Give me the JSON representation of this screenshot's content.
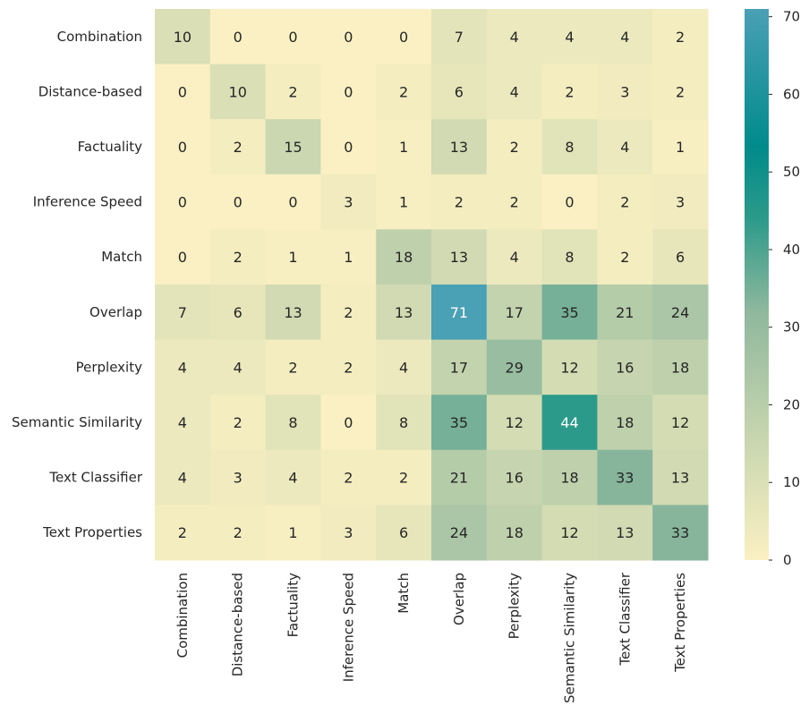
{
  "chart_data": {
    "type": "heatmap",
    "title": "",
    "xlabel": "",
    "ylabel": "",
    "rows": [
      "Combination",
      "Distance-based",
      "Factuality",
      "Inference Speed",
      "Match",
      "Overlap",
      "Perplexity",
      "Semantic Similarity",
      "Text Classifier",
      "Text Properties"
    ],
    "columns": [
      "Combination",
      "Distance-based",
      "Factuality",
      "Inference Speed",
      "Match",
      "Overlap",
      "Perplexity",
      "Semantic Similarity",
      "Text Classifier",
      "Text Properties"
    ],
    "values": [
      [
        10,
        0,
        0,
        0,
        0,
        7,
        4,
        4,
        4,
        2
      ],
      [
        0,
        10,
        2,
        0,
        2,
        6,
        4,
        2,
        3,
        2
      ],
      [
        0,
        2,
        15,
        0,
        1,
        13,
        2,
        8,
        4,
        1
      ],
      [
        0,
        0,
        0,
        3,
        1,
        2,
        2,
        0,
        2,
        3
      ],
      [
        0,
        2,
        1,
        1,
        18,
        13,
        4,
        8,
        2,
        6
      ],
      [
        7,
        6,
        13,
        2,
        13,
        71,
        17,
        35,
        21,
        24
      ],
      [
        4,
        4,
        2,
        2,
        4,
        17,
        29,
        12,
        16,
        18
      ],
      [
        4,
        2,
        8,
        0,
        8,
        35,
        12,
        44,
        18,
        12
      ],
      [
        4,
        3,
        4,
        2,
        2,
        21,
        16,
        18,
        33,
        13
      ],
      [
        2,
        2,
        1,
        3,
        6,
        24,
        18,
        12,
        13,
        33
      ]
    ],
    "colorbar": {
      "range": [
        0,
        71
      ],
      "ticks": [
        0,
        10,
        20,
        30,
        40,
        50,
        60,
        70
      ]
    },
    "colors": {
      "low": "#faf0c3",
      "mid1": "#d4dcb3",
      "mid2": "#8fb89d",
      "mid3": "#2c9a8a",
      "high": "#008b8b",
      "top": "#4aa0b5"
    }
  }
}
